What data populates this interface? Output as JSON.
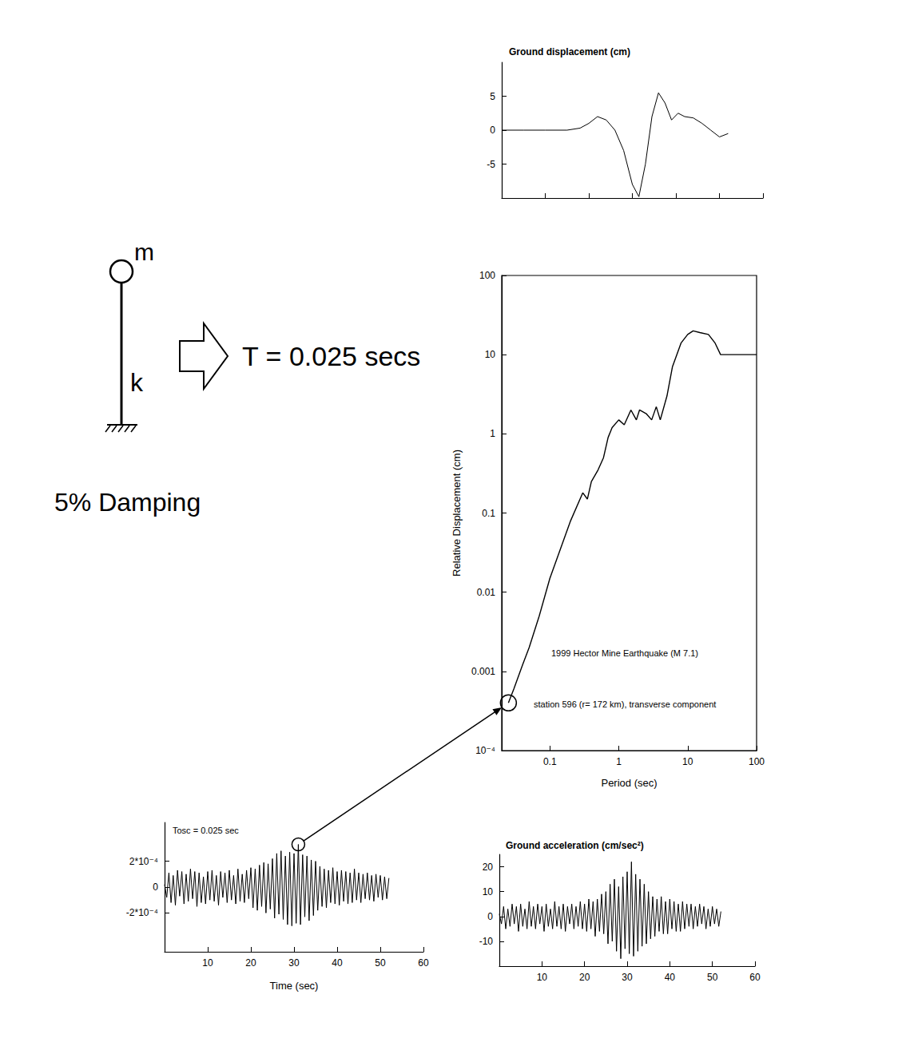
{
  "diagram": {
    "mass": "m",
    "stiffness": "k",
    "period": "T = 0.025 secs",
    "damping": "5% Damping"
  },
  "chart_data": [
    {
      "type": "line",
      "title": "Ground displacement (cm)",
      "color": "#000000",
      "x": [
        0,
        5,
        10,
        15,
        18,
        20,
        22,
        24,
        26,
        28,
        30,
        31.5,
        33,
        34.5,
        36,
        37.5,
        39,
        40.5,
        42,
        44,
        46,
        48,
        50,
        52
      ],
      "values": [
        0,
        0,
        0,
        0,
        0.3,
        1,
        2,
        1.5,
        0,
        -3,
        -8,
        -9.8,
        -5,
        2,
        5.5,
        4,
        1.5,
        2.5,
        2,
        1.8,
        1,
        0,
        -1,
        -0.5
      ],
      "xlim": [
        0,
        60
      ],
      "ylim": [
        -10,
        10
      ],
      "xticks": [
        0,
        10,
        20,
        30,
        40,
        50,
        60
      ],
      "yticks": [
        -5,
        0,
        5
      ],
      "tick_labels": "y"
    },
    {
      "type": "line",
      "log": true,
      "color": "#000000",
      "xlabel": "Period (sec)",
      "ylabel": "Relative Displacement (cm)",
      "annotations": [
        "1999 Hector Mine Earthquake (M 7.1)",
        "station 596 (r= 172 km), transverse component"
      ],
      "x": [
        0.025,
        0.03,
        0.04,
        0.05,
        0.07,
        0.1,
        0.15,
        0.2,
        0.3,
        0.35,
        0.4,
        0.5,
        0.6,
        0.7,
        0.8,
        1,
        1.2,
        1.5,
        1.8,
        2,
        2.5,
        3,
        3.5,
        4,
        5,
        6,
        8,
        10,
        12,
        15,
        20,
        25,
        30,
        50,
        100
      ],
      "values": [
        0.0004,
        0.0006,
        0.0012,
        0.002,
        0.005,
        0.015,
        0.04,
        0.08,
        0.18,
        0.15,
        0.25,
        0.35,
        0.5,
        0.9,
        1.2,
        1.5,
        1.3,
        2,
        1.5,
        2,
        1.8,
        1.5,
        2.2,
        1.5,
        3,
        7,
        14,
        18,
        20,
        19,
        18,
        14,
        10,
        10,
        10
      ],
      "xlim": [
        0.02,
        100
      ],
      "ylim": [
        0.0001,
        100
      ],
      "xticks": [
        0.1,
        1,
        10,
        100
      ],
      "yticks": [
        {
          "value": 0.0001,
          "label": "10⁻⁴"
        },
        0.001,
        0.01,
        0.1,
        1,
        10,
        100
      ]
    },
    {
      "type": "line",
      "color": "#000000",
      "xlabel": "Time (sec)",
      "annotations": [
        "Tosc = 0.025 sec"
      ],
      "x": [
        0,
        0.5,
        1,
        1.5,
        2,
        2.5,
        3,
        3.5,
        4,
        4.5,
        5,
        5.5,
        6,
        6.5,
        7,
        7.5,
        8,
        8.5,
        9,
        9.5,
        10,
        10.5,
        11,
        11.5,
        12,
        12.5,
        13,
        13.5,
        14,
        14.5,
        15,
        15.5,
        16,
        16.5,
        17,
        17.5,
        18,
        18.5,
        19,
        19.5,
        20,
        20.5,
        21,
        21.5,
        22,
        22.5,
        23,
        23.5,
        24,
        24.5,
        25,
        25.5,
        26,
        26.5,
        27,
        27.5,
        28,
        28.5,
        29,
        29.5,
        30,
        30.5,
        31,
        31.5,
        32,
        32.5,
        33,
        33.5,
        34,
        34.5,
        35,
        35.5,
        36,
        36.5,
        37,
        37.5,
        38,
        38.5,
        39,
        39.5,
        40,
        40.5,
        41,
        41.5,
        42,
        42.5,
        43,
        43.5,
        44,
        44.5,
        45,
        45.5,
        46,
        46.5,
        47,
        47.5,
        48,
        48.5,
        49,
        49.5,
        50,
        50.5,
        51,
        51.5,
        52
      ],
      "values": [
        2e-05,
        -8e-05,
        0.00011,
        -0.00012,
        9e-05,
        -0.00014,
        0.00013,
        -7e-05,
        0.00012,
        -0.00013,
        0.0001,
        -0.00011,
        0.00014,
        -9e-05,
        0.00012,
        -0.00015,
        0.00011,
        -0.00012,
        8e-05,
        -0.00013,
        0.00012,
        -0.0001,
        0.00013,
        -0.00011,
        9e-05,
        -0.00014,
        0.00012,
        -8e-05,
        0.00011,
        -0.00012,
        0.00013,
        -0.0001,
        9e-05,
        -0.00013,
        0.00014,
        -0.00011,
        0.0001,
        -0.00012,
        0.00013,
        -9e-05,
        0.00015,
        -0.00016,
        0.00014,
        -0.00018,
        0.00017,
        -0.00015,
        0.00019,
        -0.0002,
        0.00018,
        -0.00017,
        0.00022,
        -0.00024,
        0.00026,
        -0.00021,
        0.00028,
        -0.00025,
        0.00024,
        -0.00029,
        0.00027,
        -0.0003,
        0.00026,
        -0.00028,
        0.00033,
        -0.00029,
        0.00025,
        -0.00023,
        0.00024,
        -0.00026,
        0.00021,
        -0.00022,
        0.0002,
        -0.00018,
        0.00016,
        -0.00015,
        0.00014,
        -0.00016,
        0.00013,
        -0.00012,
        0.00015,
        -0.00013,
        0.00012,
        -0.00014,
        0.00013,
        -0.00011,
        0.00012,
        -0.00013,
        0.00011,
        -0.00012,
        0.00014,
        -0.0001,
        0.00011,
        -0.00012,
        0.0001,
        -9e-05,
        0.00011,
        -0.0001,
        9e-05,
        -0.00011,
        0.0001,
        -8e-05,
        9e-05,
        -0.0001,
        8e-05,
        -9e-05,
        7e-05
      ],
      "xlim": [
        0,
        60
      ],
      "ylim": [
        -0.0005,
        0.0005
      ],
      "xticks": [
        10,
        20,
        30,
        40,
        50,
        60
      ],
      "yticks": [
        {
          "value": -0.0002,
          "label": "-2*10⁻⁴"
        },
        0,
        {
          "value": 0.0002,
          "label": "2*10⁻⁴"
        }
      ]
    },
    {
      "type": "line",
      "color": "#000000",
      "title": "Ground acceleration (cm/sec²)",
      "x": [
        0,
        0.5,
        1,
        1.5,
        2,
        2.5,
        3,
        3.5,
        4,
        4.5,
        5,
        5.5,
        6,
        6.5,
        7,
        7.5,
        8,
        8.5,
        9,
        9.5,
        10,
        10.5,
        11,
        11.5,
        12,
        12.5,
        13,
        13.5,
        14,
        14.5,
        15,
        15.5,
        16,
        16.5,
        17,
        17.5,
        18,
        18.5,
        19,
        19.5,
        20,
        20.5,
        21,
        21.5,
        22,
        22.5,
        23,
        23.5,
        24,
        24.5,
        25,
        25.5,
        26,
        26.5,
        27,
        27.5,
        28,
        28.5,
        29,
        29.5,
        30,
        30.5,
        31,
        31.5,
        32,
        32.5,
        33,
        33.5,
        34,
        34.5,
        35,
        35.5,
        36,
        36.5,
        37,
        37.5,
        38,
        38.5,
        39,
        39.5,
        40,
        40.5,
        41,
        41.5,
        42,
        42.5,
        43,
        43.5,
        44,
        44.5,
        45,
        45.5,
        46,
        46.5,
        47,
        47.5,
        48,
        48.5,
        49,
        49.5,
        50,
        50.5,
        51,
        51.5,
        52
      ],
      "values": [
        1,
        -3,
        4,
        -5,
        3,
        -4,
        5,
        -3,
        4,
        -6,
        5,
        -4,
        3,
        -5,
        6,
        -4,
        4,
        -5,
        5,
        -3,
        4,
        -6,
        5,
        -4,
        3,
        -5,
        6,
        -4,
        4,
        -5,
        5,
        -6,
        4,
        -3,
        5,
        -5,
        4,
        -4,
        6,
        -5,
        5,
        -6,
        7,
        -5,
        6,
        -8,
        7,
        -6,
        9,
        -7,
        10,
        -11,
        13,
        -10,
        15,
        -14,
        12,
        -17,
        16,
        -13,
        18,
        -15,
        22,
        -16,
        17,
        -14,
        15,
        -12,
        13,
        -11,
        10,
        -9,
        8,
        -8,
        7,
        -6,
        8,
        -7,
        6,
        -7,
        7,
        -5,
        6,
        -6,
        5,
        -6,
        6,
        -5,
        5,
        -4,
        5,
        -5,
        4,
        -4,
        5,
        -3,
        4,
        -5,
        3,
        -4,
        4,
        -3,
        3,
        -4,
        2
      ],
      "xlim": [
        0,
        60
      ],
      "ylim": [
        -20,
        25
      ],
      "xticks": [
        10,
        20,
        30,
        40,
        50,
        60
      ],
      "yticks": [
        -10,
        0,
        10,
        20
      ]
    }
  ]
}
